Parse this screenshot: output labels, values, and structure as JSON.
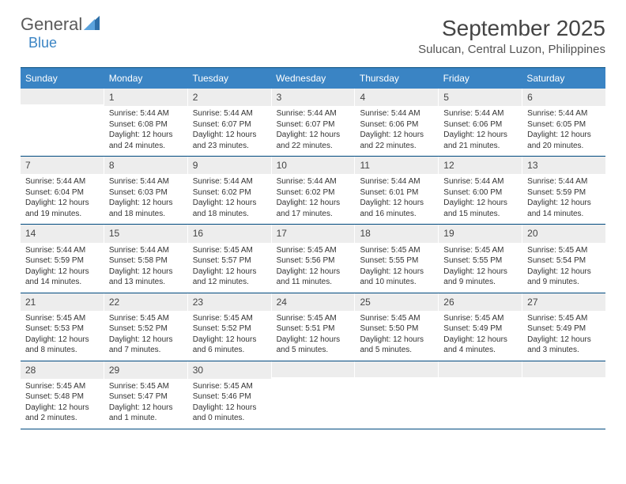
{
  "logo": {
    "main": "General",
    "accent": "Blue"
  },
  "title": "September 2025",
  "location": "Sulucan, Central Luzon, Philippines",
  "colors": {
    "header_bg": "#3a84c4",
    "header_text": "#ffffff",
    "border": "#004a7f",
    "daynum_bg": "#ededed",
    "body_text": "#333333",
    "logo_gray": "#5a5a5a",
    "logo_blue": "#3a84c4"
  },
  "day_names": [
    "Sunday",
    "Monday",
    "Tuesday",
    "Wednesday",
    "Thursday",
    "Friday",
    "Saturday"
  ],
  "weeks": [
    [
      {
        "n": "",
        "sr": "",
        "ss": "",
        "dl": ""
      },
      {
        "n": "1",
        "sr": "Sunrise: 5:44 AM",
        "ss": "Sunset: 6:08 PM",
        "dl": "Daylight: 12 hours and 24 minutes."
      },
      {
        "n": "2",
        "sr": "Sunrise: 5:44 AM",
        "ss": "Sunset: 6:07 PM",
        "dl": "Daylight: 12 hours and 23 minutes."
      },
      {
        "n": "3",
        "sr": "Sunrise: 5:44 AM",
        "ss": "Sunset: 6:07 PM",
        "dl": "Daylight: 12 hours and 22 minutes."
      },
      {
        "n": "4",
        "sr": "Sunrise: 5:44 AM",
        "ss": "Sunset: 6:06 PM",
        "dl": "Daylight: 12 hours and 22 minutes."
      },
      {
        "n": "5",
        "sr": "Sunrise: 5:44 AM",
        "ss": "Sunset: 6:06 PM",
        "dl": "Daylight: 12 hours and 21 minutes."
      },
      {
        "n": "6",
        "sr": "Sunrise: 5:44 AM",
        "ss": "Sunset: 6:05 PM",
        "dl": "Daylight: 12 hours and 20 minutes."
      }
    ],
    [
      {
        "n": "7",
        "sr": "Sunrise: 5:44 AM",
        "ss": "Sunset: 6:04 PM",
        "dl": "Daylight: 12 hours and 19 minutes."
      },
      {
        "n": "8",
        "sr": "Sunrise: 5:44 AM",
        "ss": "Sunset: 6:03 PM",
        "dl": "Daylight: 12 hours and 18 minutes."
      },
      {
        "n": "9",
        "sr": "Sunrise: 5:44 AM",
        "ss": "Sunset: 6:02 PM",
        "dl": "Daylight: 12 hours and 18 minutes."
      },
      {
        "n": "10",
        "sr": "Sunrise: 5:44 AM",
        "ss": "Sunset: 6:02 PM",
        "dl": "Daylight: 12 hours and 17 minutes."
      },
      {
        "n": "11",
        "sr": "Sunrise: 5:44 AM",
        "ss": "Sunset: 6:01 PM",
        "dl": "Daylight: 12 hours and 16 minutes."
      },
      {
        "n": "12",
        "sr": "Sunrise: 5:44 AM",
        "ss": "Sunset: 6:00 PM",
        "dl": "Daylight: 12 hours and 15 minutes."
      },
      {
        "n": "13",
        "sr": "Sunrise: 5:44 AM",
        "ss": "Sunset: 5:59 PM",
        "dl": "Daylight: 12 hours and 14 minutes."
      }
    ],
    [
      {
        "n": "14",
        "sr": "Sunrise: 5:44 AM",
        "ss": "Sunset: 5:59 PM",
        "dl": "Daylight: 12 hours and 14 minutes."
      },
      {
        "n": "15",
        "sr": "Sunrise: 5:44 AM",
        "ss": "Sunset: 5:58 PM",
        "dl": "Daylight: 12 hours and 13 minutes."
      },
      {
        "n": "16",
        "sr": "Sunrise: 5:45 AM",
        "ss": "Sunset: 5:57 PM",
        "dl": "Daylight: 12 hours and 12 minutes."
      },
      {
        "n": "17",
        "sr": "Sunrise: 5:45 AM",
        "ss": "Sunset: 5:56 PM",
        "dl": "Daylight: 12 hours and 11 minutes."
      },
      {
        "n": "18",
        "sr": "Sunrise: 5:45 AM",
        "ss": "Sunset: 5:55 PM",
        "dl": "Daylight: 12 hours and 10 minutes."
      },
      {
        "n": "19",
        "sr": "Sunrise: 5:45 AM",
        "ss": "Sunset: 5:55 PM",
        "dl": "Daylight: 12 hours and 9 minutes."
      },
      {
        "n": "20",
        "sr": "Sunrise: 5:45 AM",
        "ss": "Sunset: 5:54 PM",
        "dl": "Daylight: 12 hours and 9 minutes."
      }
    ],
    [
      {
        "n": "21",
        "sr": "Sunrise: 5:45 AM",
        "ss": "Sunset: 5:53 PM",
        "dl": "Daylight: 12 hours and 8 minutes."
      },
      {
        "n": "22",
        "sr": "Sunrise: 5:45 AM",
        "ss": "Sunset: 5:52 PM",
        "dl": "Daylight: 12 hours and 7 minutes."
      },
      {
        "n": "23",
        "sr": "Sunrise: 5:45 AM",
        "ss": "Sunset: 5:52 PM",
        "dl": "Daylight: 12 hours and 6 minutes."
      },
      {
        "n": "24",
        "sr": "Sunrise: 5:45 AM",
        "ss": "Sunset: 5:51 PM",
        "dl": "Daylight: 12 hours and 5 minutes."
      },
      {
        "n": "25",
        "sr": "Sunrise: 5:45 AM",
        "ss": "Sunset: 5:50 PM",
        "dl": "Daylight: 12 hours and 5 minutes."
      },
      {
        "n": "26",
        "sr": "Sunrise: 5:45 AM",
        "ss": "Sunset: 5:49 PM",
        "dl": "Daylight: 12 hours and 4 minutes."
      },
      {
        "n": "27",
        "sr": "Sunrise: 5:45 AM",
        "ss": "Sunset: 5:49 PM",
        "dl": "Daylight: 12 hours and 3 minutes."
      }
    ],
    [
      {
        "n": "28",
        "sr": "Sunrise: 5:45 AM",
        "ss": "Sunset: 5:48 PM",
        "dl": "Daylight: 12 hours and 2 minutes."
      },
      {
        "n": "29",
        "sr": "Sunrise: 5:45 AM",
        "ss": "Sunset: 5:47 PM",
        "dl": "Daylight: 12 hours and 1 minute."
      },
      {
        "n": "30",
        "sr": "Sunrise: 5:45 AM",
        "ss": "Sunset: 5:46 PM",
        "dl": "Daylight: 12 hours and 0 minutes."
      },
      {
        "n": "",
        "sr": "",
        "ss": "",
        "dl": ""
      },
      {
        "n": "",
        "sr": "",
        "ss": "",
        "dl": ""
      },
      {
        "n": "",
        "sr": "",
        "ss": "",
        "dl": ""
      },
      {
        "n": "",
        "sr": "",
        "ss": "",
        "dl": ""
      }
    ]
  ]
}
